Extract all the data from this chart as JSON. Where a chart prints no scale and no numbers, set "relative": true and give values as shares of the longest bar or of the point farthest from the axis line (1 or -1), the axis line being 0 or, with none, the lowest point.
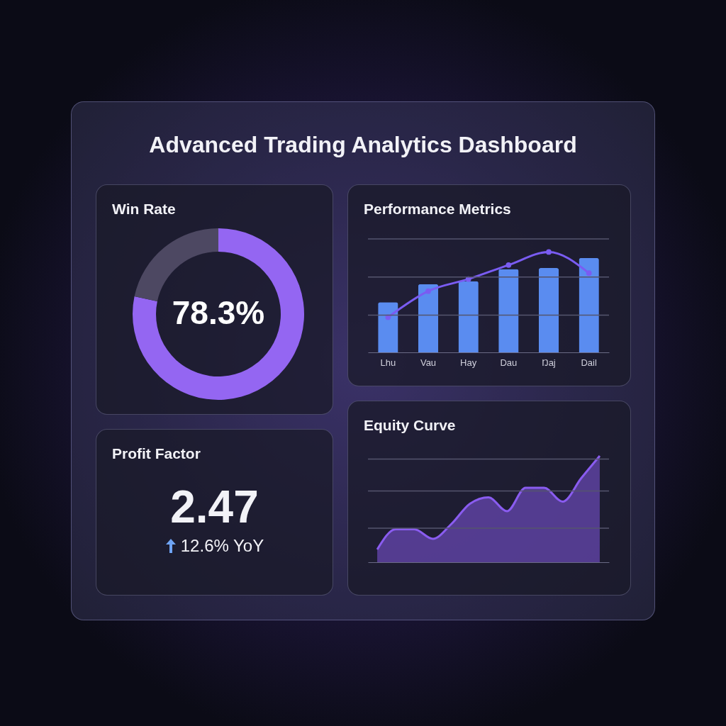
{
  "chart_data": [
    {
      "type": "other",
      "title": "Advanced Trading Analytics Dashboard"
    },
    {
      "type": "donut",
      "title": "Win Rate",
      "categories": [
        null,
        null
      ],
      "values": [
        78.3,
        21.7
      ],
      "colors": [
        "#9466f2",
        "#4d4862"
      ],
      "annotations": [
        "78.3%"
      ]
    },
    {
      "type": "bar",
      "title": "Performance Metrics",
      "relative": true,
      "ref_lines": [
        {
          "axis": "y",
          "value": 0.37,
          "color": "#55556e"
        },
        {
          "axis": "y",
          "value": 0.75,
          "color": "#55556e"
        },
        {
          "axis": "y",
          "value": 1.13,
          "color": "#55556e"
        }
      ],
      "categories": [
        "Lhu",
        "Vau",
        "Hay",
        "Dau",
        "Ŋaj",
        "Dail"
      ],
      "marker": "circle",
      "series": [
        {
          "type": "bar",
          "color": "#5a8cf0",
          "values": [
            0.5,
            0.68,
            0.71,
            0.83,
            0.84,
            0.94
          ]
        },
        {
          "type": "line",
          "color": "#7a5cf2",
          "values": [
            0.35,
            0.61,
            0.73,
            0.87,
            1.0,
            0.79
          ]
        }
      ]
    },
    {
      "type": "other",
      "title": "Profit Factor",
      "annotations": [
        "2.47",
        "12.6% YoY"
      ]
    },
    {
      "type": "area",
      "title": "Equity Curve",
      "relative": true,
      "ref_lines": [
        {
          "axis": "y",
          "value": 0.32,
          "color": "#55556e"
        },
        {
          "axis": "y",
          "value": 0.67,
          "color": "#55556e"
        },
        {
          "axis": "y",
          "value": 0.97,
          "color": "#55556e"
        }
      ],
      "categories": [
        null,
        null,
        null,
        null,
        null,
        null,
        null,
        null,
        null,
        null,
        null,
        null,
        null
      ],
      "series": [
        {
          "color": "#8a5cf0",
          "values": [
            0.12,
            0.31,
            0.31,
            0.22,
            0.36,
            0.55,
            0.61,
            0.48,
            0.7,
            0.7,
            0.57,
            0.79,
            1.0
          ]
        }
      ]
    }
  ]
}
